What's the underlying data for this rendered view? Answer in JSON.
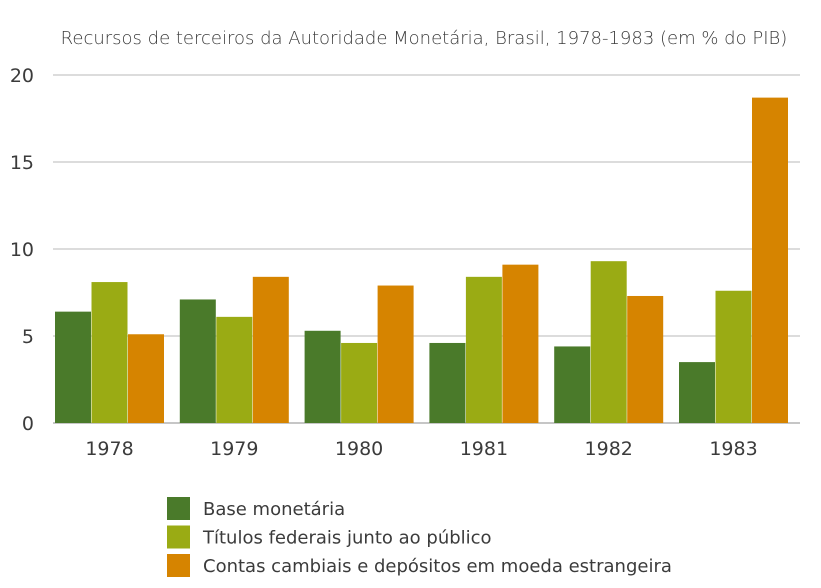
{
  "chart_data": {
    "type": "bar",
    "title": "Recursos de terceiros da Autoridade Monetária, Brasil, 1978-1983 (em % do PIB)",
    "xlabel": "",
    "ylabel": "",
    "categories": [
      "1978",
      "1979",
      "1980",
      "1981",
      "1982",
      "1983"
    ],
    "ylim": [
      0,
      20
    ],
    "yticks": [
      "0",
      "5",
      "10",
      "15",
      "20"
    ],
    "grid": true,
    "legend_position": "bottom",
    "series": [
      {
        "name": "Base monetária",
        "color": "#4a7a2a",
        "values": [
          6.4,
          7.1,
          5.3,
          4.6,
          4.4,
          3.5
        ]
      },
      {
        "name": "Títulos federais junto ao público",
        "color": "#9aab14",
        "values": [
          8.1,
          6.1,
          4.6,
          8.4,
          9.3,
          7.6
        ]
      },
      {
        "name": "Contas cambiais e depósitos em moeda estrangeira",
        "color": "#d68400",
        "values": [
          5.1,
          8.4,
          7.9,
          9.1,
          7.3,
          18.7
        ]
      }
    ]
  }
}
